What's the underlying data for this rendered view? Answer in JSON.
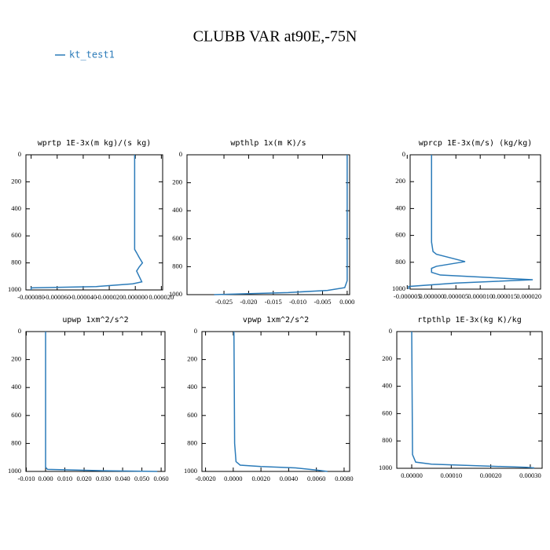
{
  "title": "CLUBB VAR at90E,-75N",
  "legend": {
    "name": "kt_test1",
    "color": "#2b7bb9"
  },
  "chart_data": [
    {
      "type": "line",
      "title": "wprtp  1E-3x(m kg)/(s kg)",
      "xlim": [
        -8.4e-05,
        2.1e-05
      ],
      "xticks": [
        {
          "value": -8e-05,
          "label": "-0.000080"
        },
        {
          "value": -6e-05,
          "label": "-0.000060"
        },
        {
          "value": -4e-05,
          "label": "-0.000040"
        },
        {
          "value": -2e-05,
          "label": "-0.000020"
        },
        {
          "value": 0,
          "label": "0.000000"
        },
        {
          "value": 2e-05,
          "label": "0.000020"
        }
      ],
      "ylim": [
        0,
        1000
      ],
      "y_inverted": true,
      "yticks": [
        0,
        200,
        400,
        600,
        800,
        1000
      ],
      "series": [
        {
          "name": "kt_test1",
          "color": "#2b7bb9",
          "values": [
            -5e-07,
            -5e-07,
            1e-06,
            3e-06,
            5.5e-06,
            3e-06,
            1e-06,
            3e-06,
            5e-06,
            -2e-06,
            -3e-05,
            -8e-05,
            -8e-05
          ],
          "levels": [
            0,
            700,
            725,
            760,
            800,
            830,
            860,
            900,
            940,
            955,
            975,
            985,
            1000
          ]
        }
      ]
    },
    {
      "type": "line",
      "title": "wpthlp  1x(m K)/s",
      "xlim": [
        -0.0325,
        0.0005
      ],
      "xticks": [
        -0.025,
        {
          "value": -0.02,
          "label": "-0.020"
        },
        -0.015,
        {
          "value": -0.01,
          "label": "-0.010"
        },
        -0.005,
        {
          "value": 0,
          "label": "0.000"
        }
      ],
      "ylim": [
        0,
        1000
      ],
      "y_inverted": true,
      "yticks": [
        0,
        200,
        400,
        600,
        800,
        1000
      ],
      "series": [
        {
          "name": "kt_test1",
          "color": "#2b7bb9",
          "values": [
            0,
            0,
            -0.0005,
            -0.004,
            -0.012,
            -0.027
          ],
          "levels": [
            0,
            900,
            950,
            970,
            985,
            1000
          ]
        }
      ]
    },
    {
      "type": "line",
      "title": "wprcp  1E-3x(m/s) (kg/kg)",
      "xlim": [
        -4.4e-06,
        2.24e-05
      ],
      "xticks": [
        {
          "value": -5e-06,
          "label": "-0.000005"
        },
        {
          "value": 0,
          "label": "0.000000"
        },
        {
          "value": 5e-06,
          "label": "0.000005"
        },
        {
          "value": 1e-05,
          "label": "0.000010"
        },
        {
          "value": 1.5e-05,
          "label": "0.000015"
        },
        {
          "value": 2e-05,
          "label": "0.000020"
        }
      ],
      "ylim": [
        0,
        1000
      ],
      "y_inverted": true,
      "yticks": [
        0,
        200,
        400,
        600,
        800,
        1000
      ],
      "series": [
        {
          "name": "kt_test1",
          "color": "#2b7bb9",
          "values": [
            0,
            0,
            3e-07,
            1e-06,
            6.9e-06,
            1e-06,
            0,
            0,
            1.8e-06,
            2.08e-05,
            5e-06,
            -4.7e-06,
            -4.7e-06
          ],
          "levels": [
            0,
            650,
            720,
            740,
            795,
            830,
            845,
            875,
            895,
            930,
            955,
            980,
            1000
          ]
        }
      ]
    },
    {
      "type": "line",
      "title": "upwp  1xm^2/s^2",
      "xlim": [
        -0.0102,
        0.062
      ],
      "xticks": [
        {
          "value": -0.01,
          "label": "-0.010"
        },
        {
          "value": 0,
          "label": "0.000"
        },
        {
          "value": 0.01,
          "label": "0.010"
        },
        {
          "value": 0.02,
          "label": "0.020"
        },
        {
          "value": 0.03,
          "label": "0.030"
        },
        {
          "value": 0.04,
          "label": "0.040"
        },
        {
          "value": 0.05,
          "label": "0.050"
        },
        {
          "value": 0.06,
          "label": "0.060"
        }
      ],
      "ylim": [
        0,
        1000
      ],
      "y_inverted": true,
      "yticks": [
        0,
        200,
        400,
        600,
        800,
        1000
      ],
      "series": [
        {
          "name": "kt_test1",
          "color": "#2b7bb9",
          "values": [
            0,
            0,
            0.001,
            0.03,
            0.058
          ],
          "levels": [
            0,
            970,
            985,
            995,
            1000
          ]
        }
      ]
    },
    {
      "type": "line",
      "title": "vpwp  1xm^2/s^2",
      "xlim": [
        -0.00226,
        0.0084
      ],
      "xticks": [
        {
          "value": -0.002,
          "label": "-0.0020"
        },
        {
          "value": 0,
          "label": "0.0000"
        },
        {
          "value": 0.002,
          "label": "0.0020"
        },
        {
          "value": 0.004,
          "label": "0.0040"
        },
        {
          "value": 0.006,
          "label": "0.0060"
        },
        {
          "value": 0.008,
          "label": "0.0080"
        }
      ],
      "ylim": [
        0,
        1000
      ],
      "y_inverted": true,
      "yticks": [
        0,
        200,
        400,
        600,
        800,
        1000
      ],
      "series": [
        {
          "name": "kt_test1",
          "color": "#2b7bb9",
          "values": [
            5e-05,
            0.0001,
            0.0002,
            0.0005,
            0.002,
            0.0045,
            0.006,
            0.0068
          ],
          "levels": [
            0,
            800,
            930,
            955,
            965,
            975,
            990,
            1000
          ]
        }
      ]
    },
    {
      "type": "line",
      "title": "rtpthlp  1E-3x(kg K)/kg",
      "xlim": [
        -3.78e-05,
        0.00033
      ],
      "xticks": [
        {
          "value": 0,
          "label": "0.00000"
        },
        {
          "value": 0.0001,
          "label": "0.00010"
        },
        {
          "value": 0.0002,
          "label": "0.00020"
        },
        {
          "value": 0.0003,
          "label": "0.00030"
        }
      ],
      "ylim": [
        0,
        1000
      ],
      "y_inverted": true,
      "yticks": [
        0,
        200,
        400,
        600,
        800,
        1000
      ],
      "series": [
        {
          "name": "kt_test1",
          "color": "#2b7bb9",
          "values": [
            0,
            2e-06,
            1e-05,
            5e-05,
            0.00015,
            0.00029,
            0.00031
          ],
          "levels": [
            0,
            900,
            955,
            970,
            980,
            993,
            997
          ]
        }
      ]
    }
  ]
}
